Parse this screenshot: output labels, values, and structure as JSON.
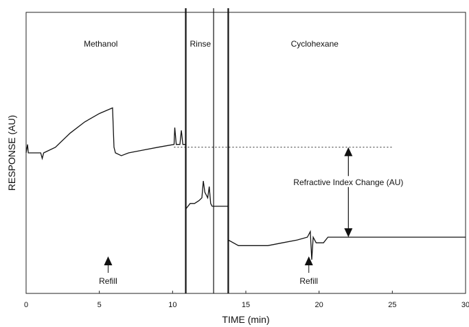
{
  "chart_data": {
    "type": "line",
    "title": "",
    "xlabel": "TIME (min)",
    "ylabel": "RESPONSE (AU)",
    "xlim": [
      0,
      30
    ],
    "ylim": [
      0,
      1
    ],
    "xticks": [
      0,
      5,
      10,
      15,
      20,
      25,
      30
    ],
    "grid": false,
    "regions": [
      {
        "label": "Methanol",
        "x_center": 5.1
      },
      {
        "label": "Rinse",
        "x_center": 11.9
      },
      {
        "label": "Cyclohexane",
        "x_center": 19.7
      }
    ],
    "phase_boundaries_x": [
      10.9,
      12.8,
      13.8
    ],
    "annotations": [
      {
        "text": "Refill",
        "x": 5.6
      },
      {
        "text": "Refill",
        "x": 19.3
      },
      {
        "text": "Refractive Index Change (AU)",
        "x": 22.0,
        "y_from": 0.52,
        "y_to": 0.2
      }
    ],
    "baseline_reference": {
      "y": 0.52,
      "x_from": 10.1,
      "x_to": 25.0,
      "style": "dotted"
    },
    "series": [
      {
        "values": [
          [
            0,
            0.5
          ],
          [
            0.1,
            0.53
          ],
          [
            0.15,
            0.5
          ],
          [
            1.0,
            0.5
          ],
          [
            1.1,
            0.48
          ],
          [
            1.2,
            0.5
          ],
          [
            2.0,
            0.52
          ],
          [
            3.0,
            0.57
          ],
          [
            4.0,
            0.61
          ],
          [
            5.0,
            0.64
          ],
          [
            5.9,
            0.66
          ],
          [
            6.0,
            0.52
          ],
          [
            6.1,
            0.5
          ],
          [
            6.5,
            0.49
          ],
          [
            7.0,
            0.5
          ],
          [
            8.0,
            0.51
          ],
          [
            9.0,
            0.52
          ],
          [
            10.1,
            0.53
          ],
          [
            10.15,
            0.59
          ],
          [
            10.25,
            0.53
          ],
          [
            10.5,
            0.53
          ],
          [
            10.6,
            0.58
          ],
          [
            10.7,
            0.53
          ],
          [
            10.9,
            0.53
          ],
          [
            10.9,
            0.3
          ],
          [
            11.2,
            0.32
          ],
          [
            11.5,
            0.32
          ],
          [
            11.8,
            0.33
          ],
          [
            12.0,
            0.34
          ],
          [
            12.1,
            0.4
          ],
          [
            12.2,
            0.36
          ],
          [
            12.4,
            0.34
          ],
          [
            12.5,
            0.38
          ],
          [
            12.6,
            0.32
          ],
          [
            12.7,
            0.31
          ],
          [
            13.8,
            0.31
          ],
          [
            13.8,
            0.19
          ],
          [
            14.5,
            0.17
          ],
          [
            15.5,
            0.17
          ],
          [
            16.5,
            0.17
          ],
          [
            17.5,
            0.18
          ],
          [
            18.5,
            0.19
          ],
          [
            19.2,
            0.2
          ],
          [
            19.4,
            0.22
          ],
          [
            19.5,
            0.12
          ],
          [
            19.6,
            0.2
          ],
          [
            19.8,
            0.18
          ],
          [
            20.3,
            0.18
          ],
          [
            20.6,
            0.2
          ],
          [
            21.0,
            0.2
          ],
          [
            30.0,
            0.2
          ]
        ]
      }
    ]
  }
}
